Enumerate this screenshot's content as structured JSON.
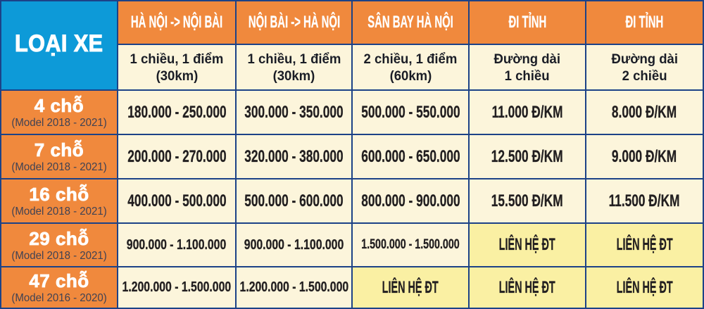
{
  "colors": {
    "grid_line": "#1c4287",
    "header_orange": "#f0893d",
    "corner_cyan": "#0d9ad8",
    "cell_cream": "#fcf5db",
    "cell_yellow": "#faf0a3",
    "text_dark": "#221f20",
    "text_white": "#ffffff",
    "text_model": "#3f4254"
  },
  "table": {
    "corner_label": "LOẠI XE",
    "columns": [
      {
        "header": "HÀ NỘI -> NỘI BÀI",
        "sub_line1": "1 chiều, 1 điểm",
        "sub_line2": "(30km)"
      },
      {
        "header": "NỘI BÀI -> HÀ NỘI",
        "sub_line1": "1 chiều, 1 điểm",
        "sub_line2": "(30km)"
      },
      {
        "header": "SÂN BAY HÀ NỘI",
        "sub_line1": "2 chiều, 1 điểm",
        "sub_line2": "(60km)"
      },
      {
        "header": "ĐI TỈNH",
        "sub_line1": "Đường dài",
        "sub_line2": "1 chiều"
      },
      {
        "header": "ĐI TỈNH",
        "sub_line1": "Đường dài",
        "sub_line2": "2 chiều"
      }
    ],
    "rows": [
      {
        "seats": "4 chỗ",
        "model": "(Model 2018 - 2021)",
        "values": [
          "180.000 - 250.000",
          "300.000 - 350.000",
          "500.000 - 550.000",
          "11.000 Đ/KM",
          "8.000 Đ/KM"
        ]
      },
      {
        "seats": "7 chỗ",
        "model": "(Model 2018 - 2021)",
        "values": [
          "200.000 - 270.000",
          "320.000 - 380.000",
          "600.000 - 650.000",
          "12.500 Đ/KM",
          "9.000 Đ/KM"
        ]
      },
      {
        "seats": "16 chỗ",
        "model": "(Model 2018 - 2021)",
        "values": [
          "400.000 - 500.000",
          "500.000 - 600.000",
          "800.000 - 900.000",
          "15.500 Đ/KM",
          "11.500 Đ/KM"
        ]
      },
      {
        "seats": "29 chỗ",
        "model": "(Model 2018 - 2021)",
        "values": [
          "900.000 - 1.100.000",
          "900.000 - 1.100.000",
          "1.500.000 - 1.500.000",
          "LIÊN HỆ ĐT",
          "LIÊN HỆ ĐT"
        ]
      },
      {
        "seats": "47 chỗ",
        "model": "(Model 2016 - 2020)",
        "values": [
          "1.200.000 - 1.500.000",
          "1.200.000 - 1.500.000",
          "LIÊN HỆ ĐT",
          "LIÊN HỆ ĐT",
          "LIÊN HỆ ĐT"
        ]
      }
    ]
  }
}
